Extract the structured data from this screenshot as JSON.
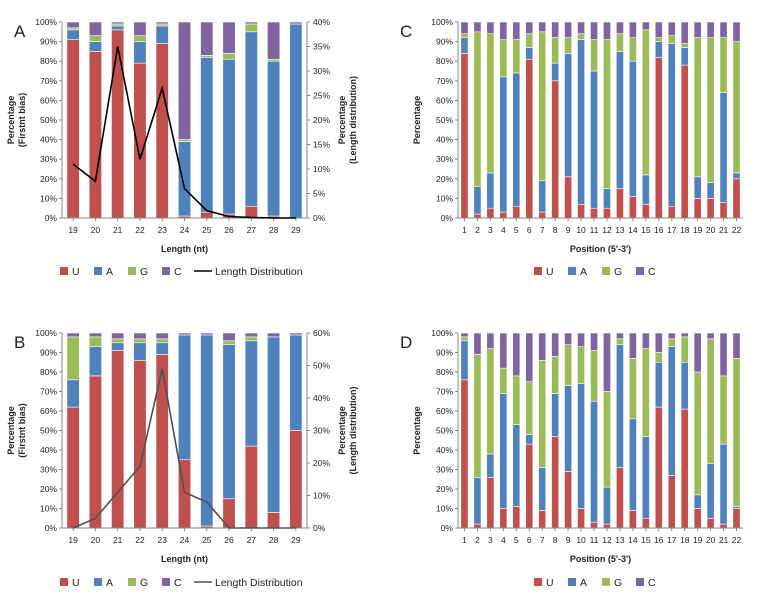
{
  "colors": {
    "U": "#C0504D",
    "A": "#4F81BD",
    "G": "#9BBB59",
    "C": "#8064A2",
    "line_A": "#000000",
    "line_B": "#505050"
  },
  "chart_data": [
    {
      "panel": "A",
      "type": "bar",
      "stacked": true,
      "xlabel": "Length (nt)",
      "ylabel": "Percentage\n(Firstnt bias)",
      "y2label": "Percentage\n(Length distribution)",
      "ylim": [
        0,
        100
      ],
      "y2lim": [
        0,
        40
      ],
      "yticks": [
        "0%",
        "10%",
        "20%",
        "30%",
        "40%",
        "50%",
        "60%",
        "70%",
        "80%",
        "90%",
        "100%"
      ],
      "y2ticks": [
        "0%",
        "5%",
        "10%",
        "15%",
        "20%",
        "25%",
        "30%",
        "35%",
        "40%"
      ],
      "categories": [
        "19",
        "20",
        "21",
        "22",
        "23",
        "24",
        "25",
        "26",
        "27",
        "28",
        "29"
      ],
      "series": [
        {
          "name": "U",
          "values": [
            91,
            85,
            96,
            79,
            89,
            1,
            3,
            2,
            6,
            1,
            0
          ]
        },
        {
          "name": "A",
          "values": [
            5,
            5,
            2,
            11,
            9,
            38,
            79,
            79,
            89,
            79,
            99
          ]
        },
        {
          "name": "G",
          "values": [
            1,
            3,
            1,
            3,
            1,
            1,
            1,
            3,
            4,
            1,
            0
          ]
        },
        {
          "name": "C",
          "values": [
            3,
            7,
            1,
            7,
            1,
            60,
            17,
            16,
            1,
            19,
            1
          ]
        }
      ],
      "line": {
        "name": "Length Distribution",
        "values": [
          11,
          7.5,
          35,
          12,
          26.5,
          6,
          1.5,
          0.3,
          0.1,
          0,
          0
        ]
      },
      "legend": [
        "U",
        "A",
        "G",
        "C",
        "Length Distribution"
      ]
    },
    {
      "panel": "B",
      "type": "bar",
      "stacked": true,
      "xlabel": "Length (nt)",
      "ylabel": "Percentage\n(Firstnt bias)",
      "y2label": "Percentage\n(Length distribution)",
      "ylim": [
        0,
        100
      ],
      "y2lim": [
        0,
        60
      ],
      "yticks": [
        "0%",
        "10%",
        "20%",
        "30%",
        "40%",
        "50%",
        "60%",
        "70%",
        "80%",
        "90%",
        "100%"
      ],
      "y2ticks": [
        "0%",
        "10%",
        "20%",
        "30%",
        "40%",
        "50%",
        "60%"
      ],
      "categories": [
        "19",
        "20",
        "21",
        "22",
        "23",
        "24",
        "25",
        "26",
        "27",
        "28",
        "29"
      ],
      "series": [
        {
          "name": "U",
          "values": [
            62,
            78,
            91,
            86,
            89,
            35,
            1,
            15,
            42,
            8,
            50
          ]
        },
        {
          "name": "A",
          "values": [
            14,
            15,
            4,
            9,
            6,
            64,
            98,
            79,
            54,
            90,
            49
          ]
        },
        {
          "name": "G",
          "values": [
            22,
            5,
            2,
            2,
            2,
            0,
            0,
            2,
            2,
            0,
            0
          ]
        },
        {
          "name": "C",
          "values": [
            2,
            2,
            3,
            3,
            3,
            1,
            1,
            4,
            2,
            2,
            1
          ]
        }
      ],
      "line": {
        "name": "Length Distribution",
        "values": [
          0,
          3,
          11,
          19,
          49,
          11,
          8,
          0,
          0,
          0,
          0
        ]
      },
      "legend": [
        "U",
        "A",
        "G",
        "C",
        "Length Distribution"
      ]
    },
    {
      "panel": "C",
      "type": "bar",
      "stacked": true,
      "xlabel": "Position (5'-3')",
      "ylabel": "Percentage",
      "ylim": [
        0,
        100
      ],
      "yticks": [
        "0%",
        "10%",
        "20%",
        "30%",
        "40%",
        "50%",
        "60%",
        "70%",
        "80%",
        "90%",
        "100%"
      ],
      "categories": [
        "1",
        "2",
        "3",
        "4",
        "5",
        "6",
        "7",
        "8",
        "9",
        "10",
        "11",
        "12",
        "13",
        "14",
        "15",
        "16",
        "17",
        "18",
        "19",
        "20",
        "21",
        "22"
      ],
      "series": [
        {
          "name": "U",
          "values": [
            84,
            2,
            5,
            3,
            6,
            81,
            3,
            70,
            21,
            7,
            5,
            5,
            15,
            11,
            7,
            82,
            6,
            78,
            10,
            10,
            8,
            20
          ]
        },
        {
          "name": "A",
          "values": [
            8,
            14,
            18,
            69,
            68,
            6,
            16,
            9,
            63,
            84,
            70,
            10,
            70,
            69,
            15,
            8,
            83,
            9,
            11,
            8,
            56,
            3
          ]
        },
        {
          "name": "G",
          "values": [
            2,
            79,
            71,
            19,
            17,
            7,
            76,
            13,
            8,
            3,
            16,
            76,
            9,
            12,
            74,
            2,
            4,
            2,
            71,
            74,
            28,
            67
          ]
        },
        {
          "name": "C",
          "values": [
            6,
            5,
            6,
            9,
            9,
            6,
            5,
            8,
            8,
            6,
            9,
            9,
            6,
            8,
            4,
            8,
            7,
            11,
            8,
            8,
            8,
            10
          ]
        }
      ],
      "legend": [
        "U",
        "A",
        "G",
        "C"
      ]
    },
    {
      "panel": "D",
      "type": "bar",
      "stacked": true,
      "xlabel": "Position (5'-3')",
      "ylabel": "Percentage",
      "ylim": [
        0,
        100
      ],
      "yticks": [
        "0%",
        "10%",
        "20%",
        "30%",
        "40%",
        "50%",
        "60%",
        "70%",
        "80%",
        "90%",
        "100%"
      ],
      "categories": [
        "1",
        "2",
        "3",
        "4",
        "5",
        "6",
        "7",
        "8",
        "9",
        "10",
        "11",
        "12",
        "13",
        "14",
        "15",
        "16",
        "17",
        "18",
        "19",
        "20",
        "21",
        "22"
      ],
      "series": [
        {
          "name": "U",
          "values": [
            76,
            2,
            26,
            10,
            11,
            43,
            9,
            47,
            29,
            10,
            3,
            2,
            31,
            9,
            5,
            62,
            27,
            61,
            10,
            5,
            2,
            10
          ]
        },
        {
          "name": "A",
          "values": [
            20,
            24,
            12,
            59,
            42,
            5,
            22,
            22,
            44,
            64,
            62,
            19,
            63,
            47,
            42,
            23,
            66,
            24,
            7,
            28,
            41,
            1
          ]
        },
        {
          "name": "G",
          "values": [
            2,
            63,
            54,
            13,
            25,
            27,
            55,
            19,
            21,
            19,
            26,
            49,
            3,
            31,
            45,
            5,
            4,
            13,
            63,
            64,
            35,
            76
          ]
        },
        {
          "name": "C",
          "values": [
            2,
            11,
            8,
            18,
            22,
            25,
            14,
            12,
            6,
            7,
            9,
            30,
            3,
            13,
            8,
            10,
            3,
            2,
            20,
            3,
            22,
            13
          ]
        }
      ],
      "legend": [
        "U",
        "A",
        "G",
        "C"
      ]
    }
  ]
}
